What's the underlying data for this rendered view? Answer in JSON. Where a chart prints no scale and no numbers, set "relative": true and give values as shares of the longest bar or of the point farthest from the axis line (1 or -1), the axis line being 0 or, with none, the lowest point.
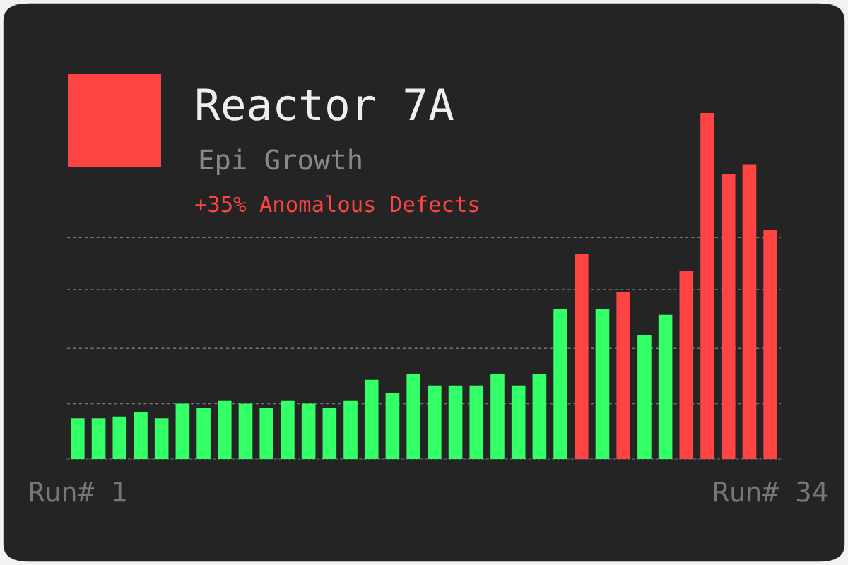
{
  "chart_data": {
    "type": "bar",
    "title": "Reactor 7A",
    "subtitle": "Epi Growth",
    "annotations": [
      "+35% Anomalous Defects"
    ],
    "relative": true,
    "categories": [
      "Run# 1",
      null,
      null,
      null,
      null,
      null,
      null,
      null,
      null,
      null,
      null,
      null,
      null,
      null,
      null,
      null,
      null,
      null,
      null,
      null,
      null,
      null,
      null,
      null,
      null,
      null,
      null,
      null,
      null,
      null,
      null,
      null,
      null,
      "Run# 34"
    ],
    "values": [
      0.118,
      0.118,
      0.123,
      0.135,
      0.118,
      0.16,
      0.147,
      0.168,
      0.16,
      0.147,
      0.168,
      0.16,
      0.147,
      0.168,
      0.229,
      0.192,
      0.246,
      0.213,
      0.213,
      0.213,
      0.246,
      0.213,
      0.246,
      0.434,
      0.594,
      0.434,
      0.482,
      0.359,
      0.417,
      0.543,
      1,
      0.823,
      0.852,
      0.662
    ],
    "colors": [
      "#33ff66",
      "#33ff66",
      "#33ff66",
      "#33ff66",
      "#33ff66",
      "#33ff66",
      "#33ff66",
      "#33ff66",
      "#33ff66",
      "#33ff66",
      "#33ff66",
      "#33ff66",
      "#33ff66",
      "#33ff66",
      "#33ff66",
      "#33ff66",
      "#33ff66",
      "#33ff66",
      "#33ff66",
      "#33ff66",
      "#33ff66",
      "#33ff66",
      "#33ff66",
      "#33ff66",
      "#ff4444",
      "#33ff66",
      "#ff4444",
      "#33ff66",
      "#33ff66",
      "#ff4444",
      "#ff4444",
      "#ff4444",
      "#ff4444",
      "#ff4444"
    ],
    "ref_lines": [
      {
        "axis": "y",
        "value": 0.16,
        "color": "#777777",
        "line_style": "dashed"
      },
      {
        "axis": "y",
        "value": 0.32,
        "color": "#777777",
        "line_style": "dashed"
      },
      {
        "axis": "y",
        "value": 0.49,
        "color": "#777777",
        "line_style": "dashed"
      },
      {
        "axis": "y",
        "value": 0.64,
        "color": "#777777",
        "line_style": "dashed"
      }
    ],
    "grid": false,
    "legend": false
  }
}
